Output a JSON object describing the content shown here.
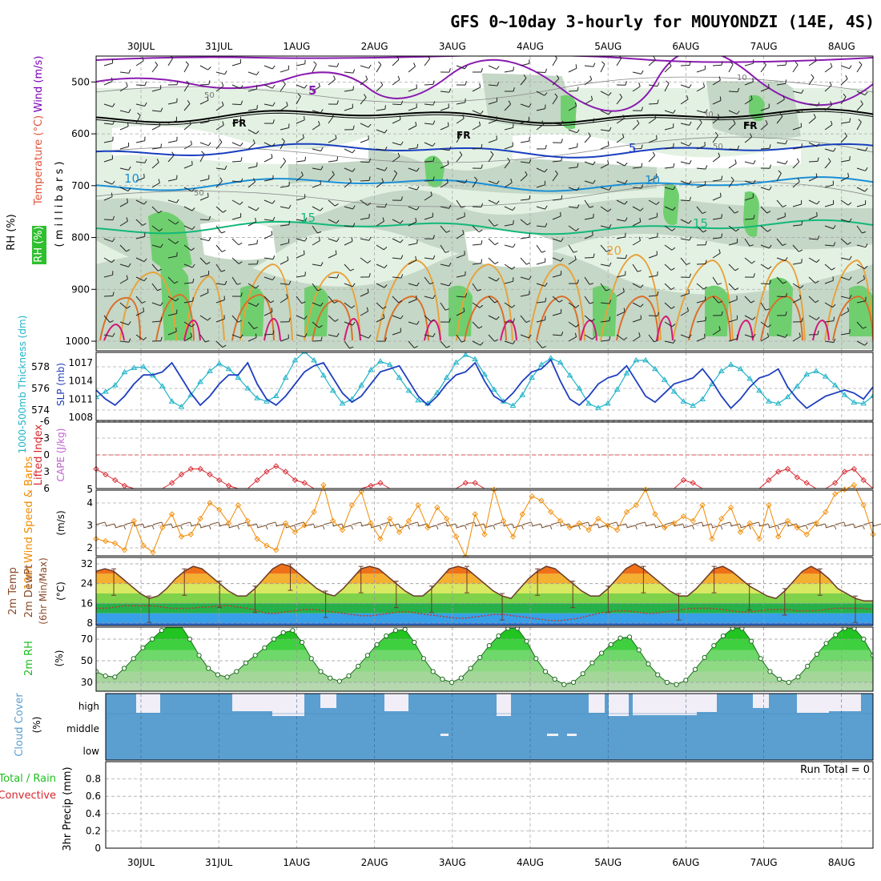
{
  "title": "GFS 0~10day 3-hourly for MOUYONDZI (14E, 4S)",
  "dates": [
    "30JUL",
    "31JUL",
    "1AUG",
    "2AUG",
    "3AUG",
    "4AUG",
    "5AUG",
    "6AUG",
    "7AUG",
    "8AUG"
  ],
  "colors": {
    "wind": "#7a00b4",
    "temp": "#e0533a",
    "rh": "#1fbf1f",
    "thick": "#1fb3c8",
    "slp": "#1f3fbf",
    "lifted": "#d8262e",
    "cape": "#c060d0",
    "wind10": "#f08a00",
    "cloud": "#5b9fd1",
    "precip_conv": "#d8262e"
  },
  "chart_data": [
    {
      "type": "line",
      "panel": "upper-air",
      "ylabel_rh": "RH (%)",
      "ylabel_temp": "Temperature (°C)",
      "ylabel_wind": "Wind (m/s)",
      "ylabel_units": "( m i l l i b a r s )",
      "y_ticks": [
        500,
        600,
        700,
        800,
        900,
        1000
      ],
      "ylim": [
        450,
        1000
      ],
      "contour_labels": [
        "5",
        "50",
        "FR",
        "FR",
        "FR",
        "10",
        "50",
        "5",
        "10",
        "15",
        "15",
        "20",
        "30",
        "50",
        "10"
      ],
      "isotherm_levels_mb": {
        "FR": 566,
        "5": 632,
        "10": 697,
        "15": 780
      }
    },
    {
      "type": "line",
      "panel": "thickness-slp",
      "ylabel_left": "1000-500mb Thickness (dm)",
      "ylabel_right": "SLP (mb)",
      "left_ticks": [
        574,
        576,
        578
      ],
      "right_ticks": [
        1008,
        1011,
        1014,
        1017
      ],
      "series": [
        {
          "name": "Thickness",
          "values": [
            575.2,
            575.7,
            576.3,
            577.5,
            577.9,
            578.0,
            577.2,
            576.2,
            574.8,
            574.3,
            575.4,
            576.6,
            577.6,
            578.3,
            577.8,
            577.0,
            576.0,
            575.1,
            574.8,
            575.3,
            577.0,
            578.6,
            579.4,
            578.6,
            577.2,
            575.8,
            574.6,
            575.0,
            576.3,
            577.7,
            578.5,
            578.2,
            577.0,
            575.8,
            574.9,
            574.6,
            575.6,
            577.0,
            578.4,
            579.1,
            578.7,
            577.3,
            575.9,
            574.8,
            574.4,
            575.4,
            577.0,
            578.2,
            578.8,
            578.4,
            577.2,
            576.0,
            574.6,
            574.2,
            574.6,
            575.9,
            577.4,
            578.6,
            578.6,
            577.8,
            576.8,
            575.7,
            574.8,
            574.4,
            575.0,
            576.4,
            577.6,
            578.2,
            577.8,
            576.9,
            575.8,
            574.8,
            574.6,
            575.2,
            576.2,
            577.3,
            577.6,
            577.1,
            576.3,
            575.4,
            574.7,
            574.6,
            575.3
          ]
        },
        {
          "name": "SLP",
          "values": [
            1012.5,
            1011,
            1010,
            1011.5,
            1013.5,
            1015,
            1015,
            1015.5,
            1017,
            1014.5,
            1012,
            1010,
            1011.5,
            1013.5,
            1015,
            1015,
            1017,
            1013.5,
            1011,
            1010,
            1011.5,
            1013.5,
            1015.5,
            1016.5,
            1017,
            1014.5,
            1012,
            1010.5,
            1011.5,
            1013.5,
            1015.5,
            1016,
            1016.5,
            1014,
            1011.5,
            1010,
            1011.5,
            1013.5,
            1015,
            1015.5,
            1017,
            1014,
            1011.5,
            1010.5,
            1012,
            1014,
            1015.5,
            1016,
            1017.5,
            1014,
            1011,
            1010,
            1011.5,
            1013.5,
            1014.5,
            1015,
            1016.5,
            1014,
            1011.5,
            1010.5,
            1012,
            1013.5,
            1014,
            1014.5,
            1016,
            1014,
            1011.5,
            1009.5,
            1011,
            1013,
            1014.5,
            1015,
            1016,
            1013,
            1011,
            1009.5,
            1010.5,
            1011.5,
            1012,
            1012.5,
            1012,
            1011,
            1013
          ]
        }
      ]
    },
    {
      "type": "line",
      "panel": "stability",
      "ylabel_left": "Lifted Index",
      "ylabel_right": "CAPE (J/kg)",
      "left_ticks": [
        -6,
        -3,
        0,
        3,
        6
      ],
      "right_ticks": [
        5
      ],
      "series": [
        {
          "name": "Lifted Index",
          "values": [
            2.5,
            3.5,
            4.5,
            5.5,
            6,
            6,
            6,
            6,
            5,
            3.5,
            2.5,
            2.5,
            3.5,
            4.5,
            5.5,
            6,
            6,
            4.5,
            3,
            2,
            3,
            4.5,
            5,
            6,
            6,
            6,
            6,
            6,
            6,
            5.5,
            5,
            6,
            6,
            6,
            6,
            6,
            6,
            6,
            6,
            5,
            5,
            6,
            6,
            6,
            6,
            6,
            6,
            6,
            6,
            6,
            6,
            6,
            6,
            6,
            6,
            6,
            6,
            6,
            6,
            6,
            6,
            6,
            4.5,
            5,
            6,
            6,
            6,
            6,
            6,
            6,
            6,
            4.5,
            3,
            2.5,
            4,
            5,
            6,
            6,
            5,
            3,
            2.5,
            4.5,
            6
          ]
        }
      ]
    },
    {
      "type": "line",
      "panel": "wind10m",
      "ylabel": "10m Wind Speed & Barbs",
      "yunit": "(m/s)",
      "y_ticks": [
        2,
        3,
        4
      ],
      "series": [
        {
          "name": "10m Wind Speed",
          "values": [
            2.4,
            2.3,
            2.2,
            1.9,
            3.2,
            2.1,
            1.8,
            2.9,
            3.5,
            2.5,
            2.6,
            3.3,
            4,
            3.7,
            3.1,
            3.9,
            3.2,
            2.4,
            2.1,
            1.9,
            3.1,
            2.7,
            3,
            3.6,
            4.8,
            3.2,
            2.8,
            3.9,
            4.5,
            3.1,
            2.4,
            3.3,
            2.7,
            3.2,
            3.9,
            2.9,
            3.8,
            3.3,
            2.5,
            1.6,
            3.5,
            2.6,
            4.6,
            3.2,
            2.5,
            3.5,
            4.3,
            4.1,
            3.6,
            3.2,
            2.9,
            3.1,
            2.8,
            3.3,
            3,
            2.8,
            3.6,
            3.9,
            4.6,
            3.5,
            2.9,
            3.1,
            3.4,
            3.2,
            3.9,
            2.4,
            3.3,
            3.8,
            2.7,
            3.1,
            2.4,
            3.9,
            2.5,
            3.2,
            2.9,
            2.6,
            3.1,
            3.6,
            4.4,
            4.6,
            4.8,
            3.9,
            2.6
          ]
        }
      ]
    },
    {
      "type": "area",
      "panel": "temp2m",
      "ylabel": "2m Temp",
      "ylabel2": "2m DewPt",
      "ylabel3": "(6hr Min/Max)",
      "yunit": "(°C)",
      "y_ticks": [
        8,
        16,
        24,
        32
      ],
      "series": [
        {
          "name": "2m Temp",
          "values": [
            29,
            30,
            29,
            26,
            23,
            20,
            18,
            19,
            22,
            26,
            29,
            31,
            30,
            27,
            24,
            21,
            19,
            19,
            22,
            26,
            30,
            32,
            31,
            28,
            25,
            22,
            20,
            19,
            22,
            26,
            30,
            31,
            30,
            27,
            24,
            21,
            19,
            19,
            22,
            26,
            30,
            31,
            30,
            27,
            24,
            21,
            19,
            18,
            22,
            26,
            29,
            31,
            30,
            27,
            24,
            21,
            19,
            19,
            22,
            26,
            30,
            32,
            30,
            27,
            24,
            21,
            19,
            19,
            22,
            26,
            30,
            31,
            29,
            26,
            23,
            21,
            19,
            18,
            21,
            25,
            29,
            31,
            29,
            26,
            22,
            20,
            18,
            17,
            17
          ]
        },
        {
          "name": "2m DewPt",
          "values": [
            14,
            14,
            14.5,
            15,
            15,
            15,
            15,
            14.5,
            14,
            14,
            14,
            14.5,
            14.5,
            15,
            15,
            14.5,
            14,
            13,
            12,
            12,
            12.5,
            13,
            13.5,
            13.5,
            13,
            12.5,
            12,
            11.5,
            11,
            11,
            11.5,
            12,
            12.5,
            12.5,
            12,
            11.5,
            11,
            10.5,
            10,
            10,
            10.5,
            11,
            11.5,
            11.5,
            11,
            10.5,
            10,
            9.5,
            9,
            9,
            9.5,
            10,
            11,
            12,
            12.5,
            13,
            13,
            12.5,
            12,
            12,
            12.5,
            13,
            13.5,
            14,
            14,
            14,
            13.5,
            13,
            12.5,
            12.5,
            13,
            13.5,
            13.5,
            13.5,
            13,
            13,
            13,
            13.5,
            14,
            14,
            14,
            14,
            13.5
          ]
        }
      ]
    },
    {
      "type": "area",
      "panel": "rh2m",
      "ylabel": "2m RH",
      "yunit": "(%)",
      "y_ticks": [
        30,
        50,
        70
      ],
      "series": [
        {
          "name": "2m RH",
          "values": [
            40,
            36,
            35,
            43,
            52,
            62,
            70,
            78,
            83,
            83,
            70,
            55,
            43,
            37,
            35,
            40,
            48,
            55,
            62,
            70,
            76,
            78,
            67,
            52,
            40,
            34,
            31,
            36,
            45,
            55,
            65,
            73,
            78,
            79,
            67,
            52,
            40,
            33,
            30,
            34,
            43,
            53,
            64,
            73,
            80,
            80,
            68,
            52,
            40,
            33,
            28,
            30,
            38,
            48,
            57,
            65,
            71,
            72,
            60,
            47,
            37,
            30,
            28,
            32,
            42,
            53,
            64,
            73,
            80,
            80,
            68,
            52,
            40,
            33,
            30,
            35,
            45,
            56,
            66,
            74,
            80,
            80,
            70,
            55
          ]
        }
      ]
    },
    {
      "type": "area",
      "panel": "cloud",
      "ylabel": "Cloud Cover",
      "yunit": "(%)",
      "levels": [
        "high",
        "middle",
        "low"
      ]
    },
    {
      "type": "bar",
      "panel": "precip",
      "ylabel": "Total / Rain",
      "ylabel2": "Convective",
      "ylabel3": "3hr Precip (mm)",
      "y_ticks": [
        "0",
        "0.2",
        "0.4",
        "0.6",
        "0.8"
      ],
      "ylim": [
        0,
        1
      ],
      "annotation": "Run Total = 0",
      "values": []
    }
  ]
}
